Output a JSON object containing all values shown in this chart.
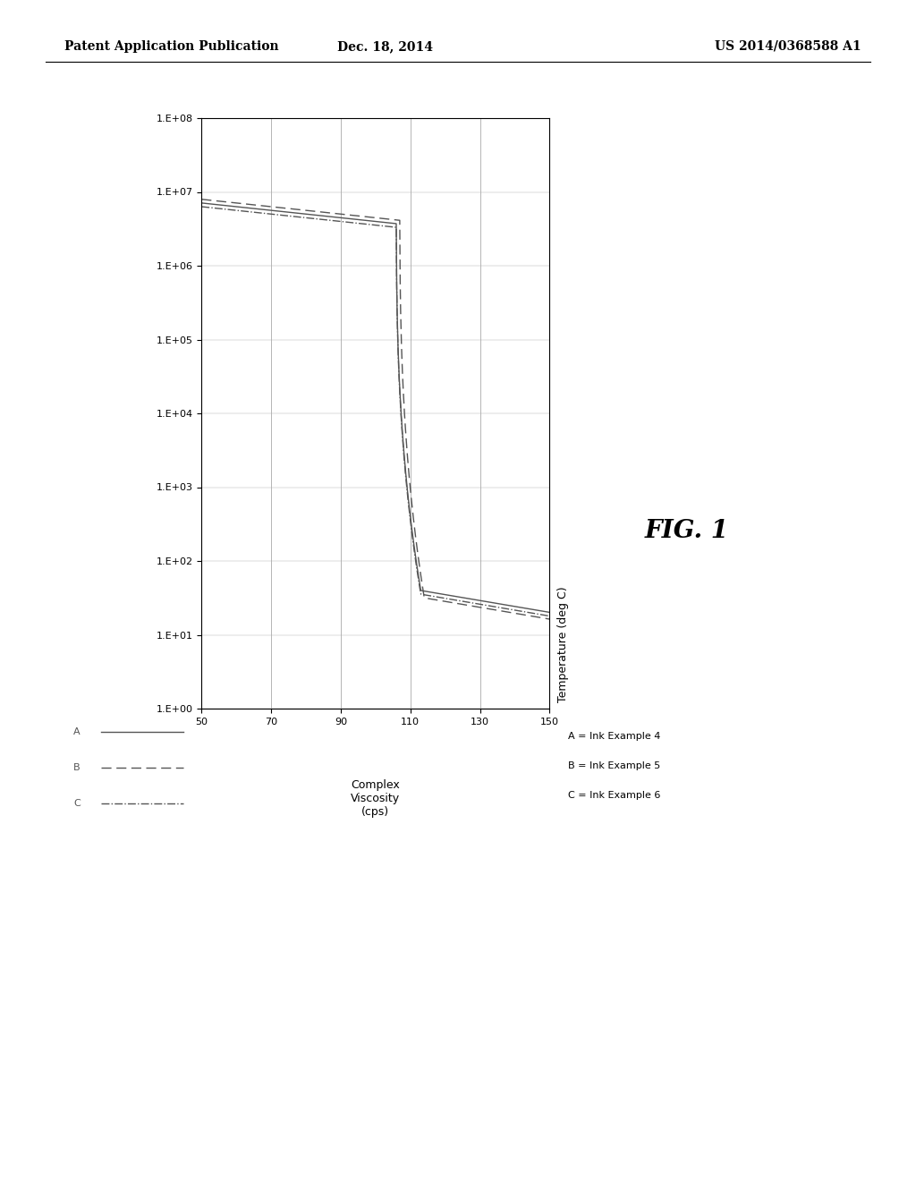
{
  "header_left": "Patent Application Publication",
  "header_center": "Dec. 18, 2014",
  "header_right": "US 2014/0368588 A1",
  "fig_label": "FIG. 1",
  "temp_label": "Temperature (deg C)",
  "visc_label_line1": "Complex",
  "visc_label_line2": "Viscosity",
  "visc_label_line3": "(cps)",
  "temp_ticks": [
    50,
    70,
    90,
    110,
    130,
    150
  ],
  "visc_tick_labels": [
    "1.E+08",
    "1.E+07",
    "1.E+06",
    "1.E+05",
    "1.E+04",
    "1.E+03",
    "1.E+02",
    "1.E+01",
    "1.E+00"
  ],
  "visc_tick_vals": [
    8,
    7,
    6,
    5,
    4,
    3,
    2,
    1,
    0
  ],
  "legend_labels": [
    "A",
    "B",
    "C"
  ],
  "legend_entries": [
    "A = Ink Example 4",
    "B = Ink Example 5",
    "C = Ink Example 6"
  ],
  "bg_color": "#ffffff",
  "line_color": "#555555",
  "grid_color": "#aaaaaa"
}
